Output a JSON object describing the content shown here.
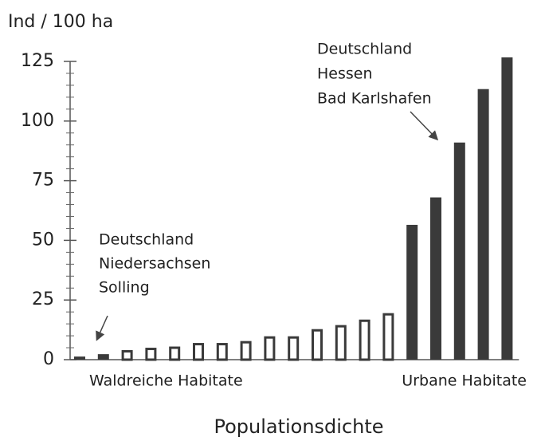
{
  "chart_data": {
    "type": "bar",
    "y_label": "Ind / 100 ha",
    "x_label": "Populationsdichte",
    "categories": [
      null,
      null,
      null,
      null,
      null,
      null,
      null,
      null,
      null,
      null,
      null,
      null,
      null,
      null,
      null,
      null,
      null,
      null,
      null
    ],
    "values": [
      1.3,
      2.3,
      3.5,
      4.5,
      5,
      6.5,
      6.5,
      7.3,
      9.3,
      9.3,
      12.3,
      14,
      16.3,
      19,
      56.5,
      68,
      91,
      113.4,
      126.7
    ],
    "bar_styles": [
      "filled",
      "filled",
      "outline",
      "outline",
      "outline",
      "outline",
      "outline",
      "outline",
      "outline",
      "outline",
      "outline",
      "outline",
      "outline",
      "outline",
      "filled",
      "filled",
      "filled",
      "filled",
      "filled"
    ],
    "color": "#3a3a3a",
    "ylim": [
      0,
      125
    ],
    "yticks": [
      0,
      25,
      50,
      75,
      100,
      125
    ],
    "minor_yticks": [
      5,
      10,
      15,
      20,
      30,
      35,
      40,
      45,
      55,
      60,
      65,
      70,
      80,
      85,
      90,
      95,
      105,
      110,
      115,
      120
    ],
    "grid": false,
    "group_labels": [
      "Waldreiche Habitate",
      "Urbane Habitate"
    ],
    "annotations": [
      {
        "lines": [
          "Deutschland",
          "Niedersachsen",
          "Solling"
        ]
      },
      {
        "lines": [
          "Deutschland",
          "Hessen",
          "Bad Karlshafen"
        ]
      }
    ]
  }
}
